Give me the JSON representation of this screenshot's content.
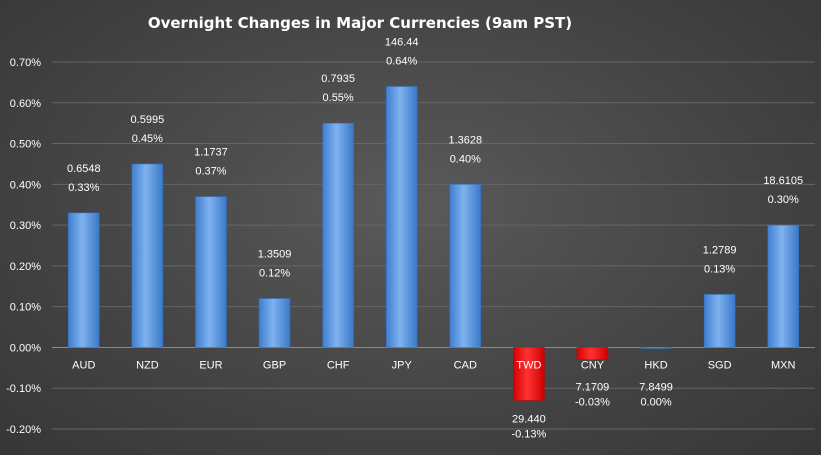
{
  "chart_data": {
    "type": "bar",
    "title": "Overnight Changes in Major Currencies (9am PST)",
    "categories": [
      "AUD",
      "NZD",
      "EUR",
      "GBP",
      "CHF",
      "JPY",
      "CAD",
      "TWD",
      "CNY",
      "HKD",
      "SGD",
      "MXN"
    ],
    "values": [
      0.33,
      0.45,
      0.37,
      0.12,
      0.55,
      0.64,
      0.4,
      -0.13,
      -0.03,
      0.0,
      0.13,
      0.3
    ],
    "value_labels": [
      "0.33%",
      "0.45%",
      "0.37%",
      "0.12%",
      "0.55%",
      "0.64%",
      "0.40%",
      "-0.13%",
      "-0.03%",
      "0.00%",
      "0.13%",
      "0.30%"
    ],
    "rates": [
      "0.6548",
      "0.5995",
      "1.1737",
      "1.3509",
      "0.7935",
      "146.44",
      "1.3628",
      "29.440",
      "7.1709",
      "7.8499",
      "1.2789",
      "18.6105"
    ],
    "y_ticks": [
      "0.70%",
      "0.60%",
      "0.50%",
      "0.40%",
      "0.30%",
      "0.20%",
      "0.10%",
      "0.00%",
      "-0.10%",
      "-0.20%"
    ],
    "y_tick_values": [
      0.7,
      0.6,
      0.5,
      0.4,
      0.3,
      0.2,
      0.1,
      0.0,
      -0.1,
      -0.2
    ],
    "ylim": [
      -0.2,
      0.7
    ],
    "xlabel": "",
    "ylabel": "",
    "grid": true,
    "colors": {
      "positive": "#6ca3e6",
      "positive_dark": "#2f6fbf",
      "negative": "#ff2a2a",
      "negative_dark": "#c00000",
      "text": "#ffffff",
      "grid": "#666666"
    }
  }
}
